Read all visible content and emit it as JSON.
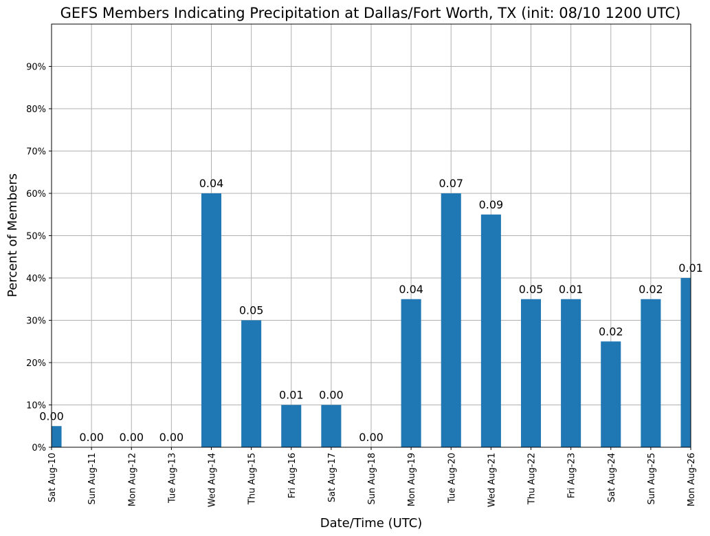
{
  "chart_data": {
    "type": "bar",
    "title": "GEFS Members Indicating Precipitation at Dallas/Fort Worth, TX (init: 08/10 1200 UTC)",
    "xlabel": "Date/Time (UTC)",
    "ylabel": "Percent of Members",
    "categories": [
      "Sat Aug-10",
      "Sun Aug-11",
      "Mon Aug-12",
      "Tue Aug-13",
      "Wed Aug-14",
      "Thu Aug-15",
      "Fri Aug-16",
      "Sat Aug-17",
      "Sun Aug-18",
      "Mon Aug-19",
      "Tue Aug-20",
      "Wed Aug-21",
      "Thu Aug-22",
      "Fri Aug-23",
      "Sat Aug-24",
      "Sun Aug-25",
      "Mon Aug-26"
    ],
    "values": [
      5,
      0,
      0,
      0,
      60,
      30,
      10,
      10,
      0,
      35,
      60,
      55,
      35,
      35,
      25,
      35,
      40
    ],
    "data_labels": [
      "0.00",
      "0.00",
      "0.00",
      "0.00",
      "0.04",
      "0.05",
      "0.01",
      "0.00",
      "0.00",
      "0.04",
      "0.07",
      "0.09",
      "0.05",
      "0.01",
      "0.02",
      "0.02",
      "0.01"
    ],
    "yticks": [
      0,
      10,
      20,
      30,
      40,
      50,
      60,
      70,
      80,
      90
    ],
    "ytick_labels": [
      "0%",
      "10%",
      "20%",
      "30%",
      "40%",
      "50%",
      "60%",
      "70%",
      "80%",
      "90%"
    ],
    "ylim": [
      0,
      100
    ],
    "grid": true,
    "legend": "none",
    "bar_color": "#1f77b4"
  }
}
